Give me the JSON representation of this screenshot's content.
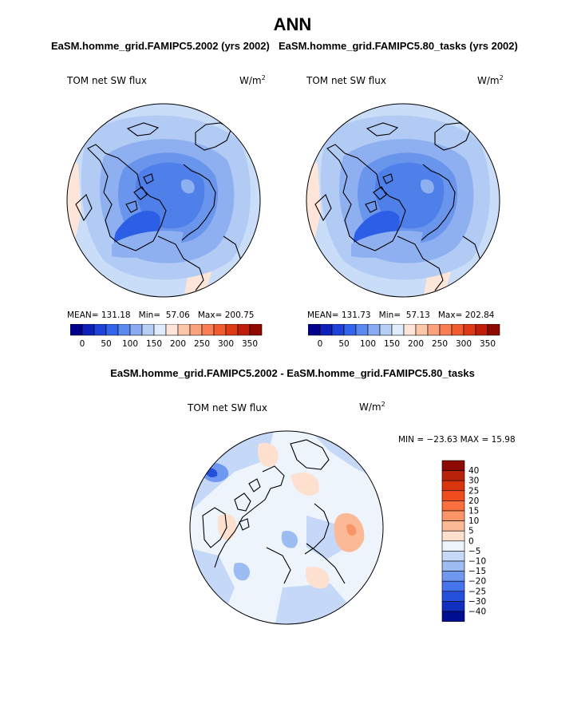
{
  "figure": {
    "title": "ANN",
    "panel1_title": "EaSM.homme_grid.FAMIPC5.2002 (yrs 2002)",
    "panel2_title": "EaSM.homme_grid.FAMIPC5.80_tasks (yrs 2002)",
    "diff_title": "EaSM.homme_grid.FAMIPC5.2002 - EaSM.homme_grid.FAMIPC5.80_tasks"
  },
  "panels": [
    {
      "variable": "TOM net SW flux",
      "units_base": "W/m",
      "units_exp": "2",
      "stats": {
        "mean_label": "MEAN=",
        "mean": "131.18",
        "min_label": "Min=",
        "min": "57.06",
        "max_label": "Max=",
        "max": "200.75"
      }
    },
    {
      "variable": "TOM net SW flux",
      "units_base": "W/m",
      "units_exp": "2",
      "stats": {
        "mean_label": "MEAN=",
        "mean": "131.73",
        "min_label": "Min=",
        "min": "57.13",
        "max_label": "Max=",
        "max": "202.84"
      }
    }
  ],
  "diff_panel": {
    "variable": "TOM net SW flux",
    "units_base": "W/m",
    "units_exp": "2",
    "minmax": "MIN = −23.63 MAX =  15.98"
  },
  "colorbar_h": {
    "colors": [
      "#00008c",
      "#0d20b8",
      "#1d43d8",
      "#3264ec",
      "#5b89f0",
      "#8aaaf2",
      "#b7cef5",
      "#e0ecfb",
      "#fde6d9",
      "#fcc6a8",
      "#fba27c",
      "#f97e53",
      "#f25a30",
      "#de3a16",
      "#bf1f08",
      "#8e0a00"
    ],
    "tick_labels": [
      "0",
      "50",
      "100",
      "150",
      "200",
      "250",
      "300",
      "350"
    ]
  },
  "colorbar_v": {
    "colors": [
      "#8e0a00",
      "#b7230a",
      "#d8360f",
      "#f04d1f",
      "#fa6f3e",
      "#fb9567",
      "#fcb996",
      "#fde0cd",
      "#eef4fc",
      "#c6d8f7",
      "#9cbcf2",
      "#6f98f0",
      "#4574ec",
      "#2550dc",
      "#0f2fbf",
      "#000e90"
    ],
    "tick_labels": [
      "40",
      "30",
      "25",
      "20",
      "15",
      "10",
      "5",
      "0",
      "−5",
      "−10",
      "−15",
      "−20",
      "−25",
      "−30",
      "−40"
    ]
  }
}
